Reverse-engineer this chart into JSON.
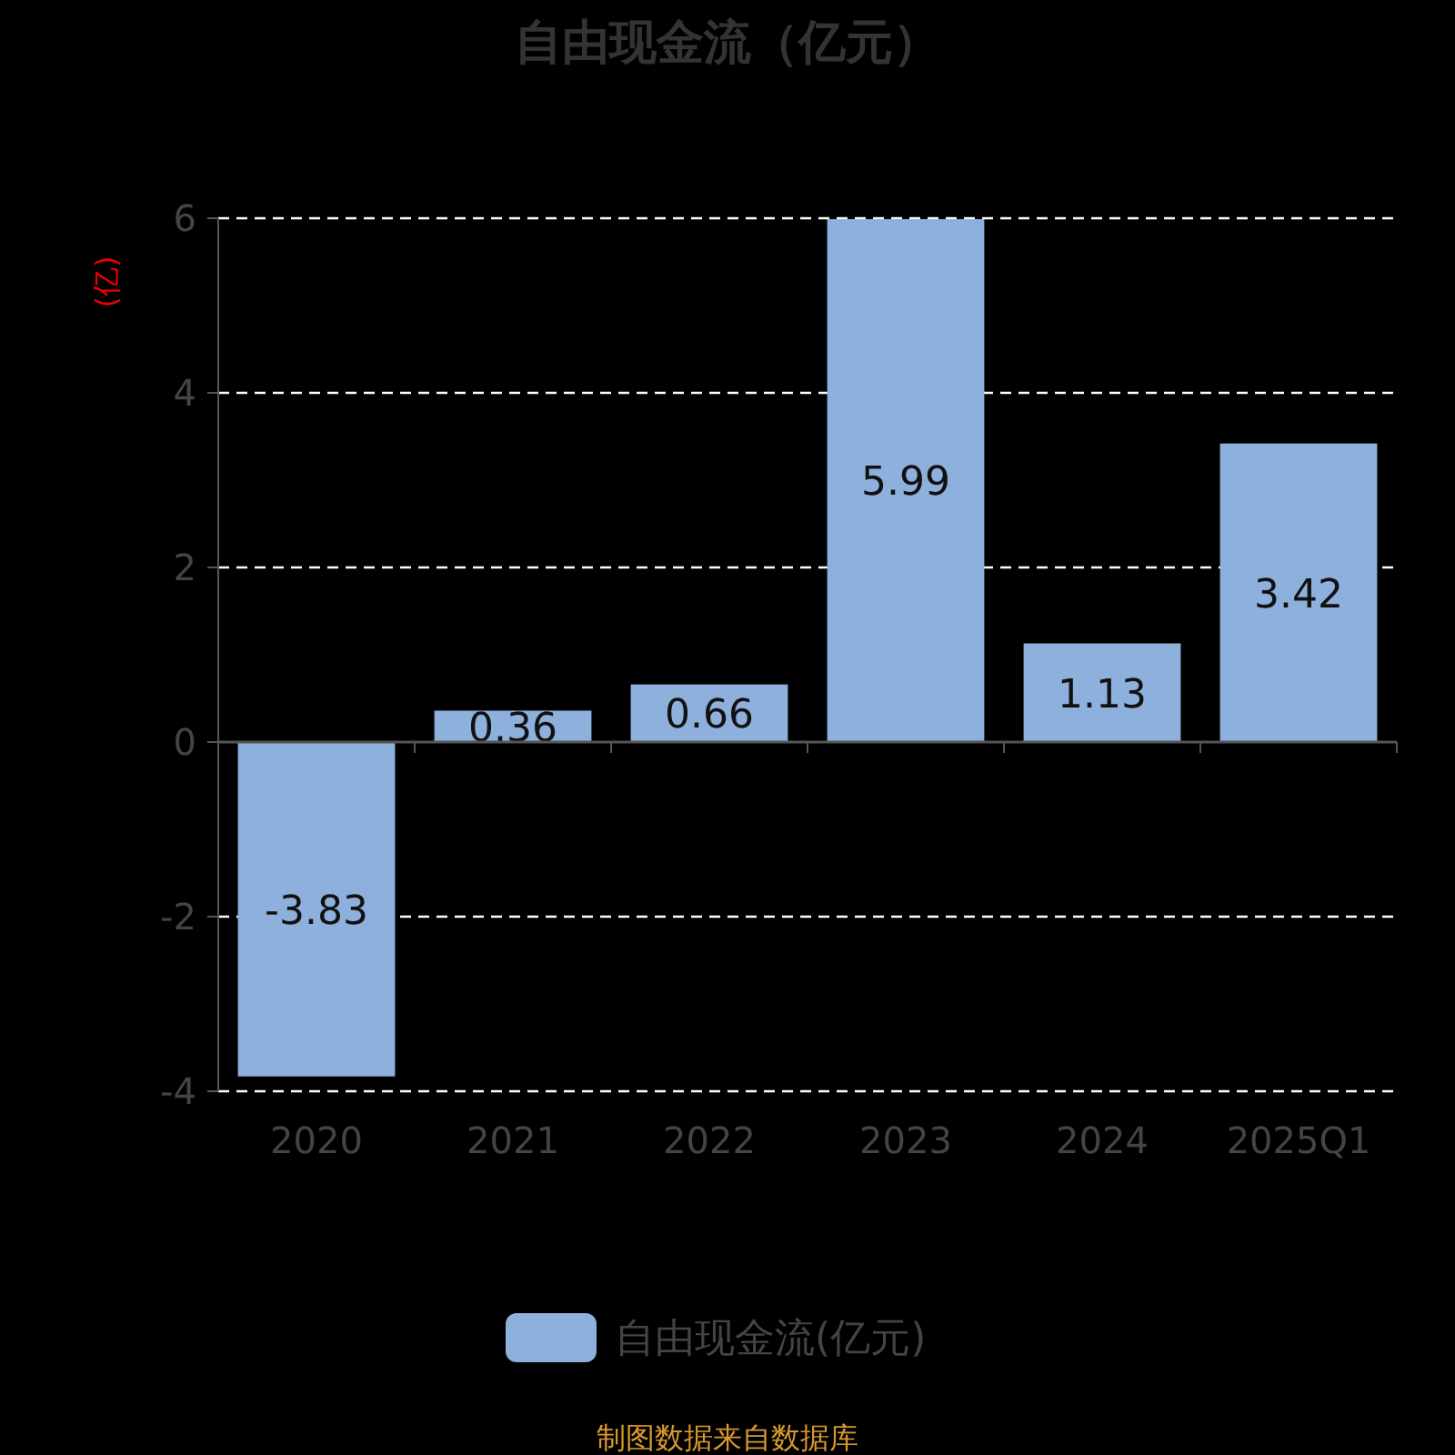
{
  "chart_data": {
    "type": "bar",
    "title": "自由现金流（亿元）",
    "ylabel": "(亿)",
    "categories": [
      "2020",
      "2021",
      "2022",
      "2023",
      "2024",
      "2025Q1"
    ],
    "series": [
      {
        "name": "自由现金流(亿元)",
        "color": "#8eb0dc",
        "values": [
          -3.83,
          0.36,
          0.66,
          5.99,
          1.13,
          3.42
        ]
      }
    ],
    "ylim": [
      -4,
      6
    ],
    "yticks": [
      -4,
      -2,
      0,
      2,
      4,
      6
    ],
    "grid": "y",
    "legend": "bottom",
    "data_labels": true,
    "annotations": [
      "制图数据来自数据库"
    ]
  }
}
